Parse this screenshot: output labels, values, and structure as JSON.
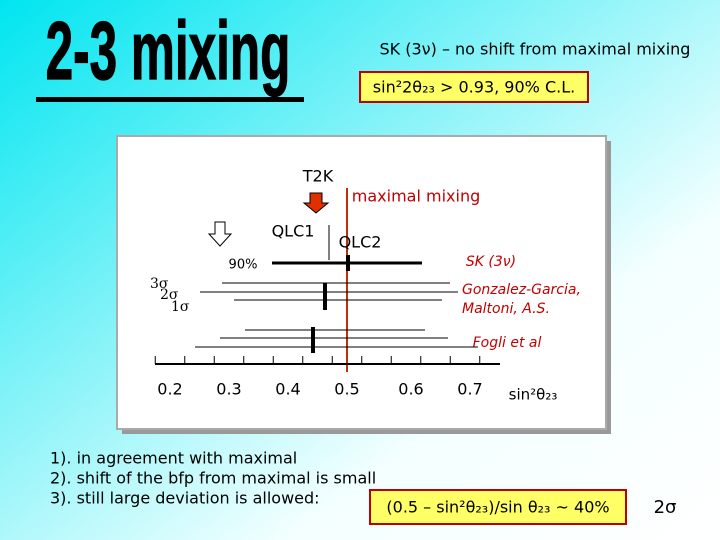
{
  "slide": {
    "title": "2-3 mixing",
    "box1": "SK (3ν) – no shift  from maximal mixing",
    "box2": "sin²2θ₂₃ > 0.93,  90% C.L.",
    "plot": {
      "t2k": "T2K",
      "maximal": "maximal mixing",
      "qlc1": "QLC1",
      "qlc2": "QLC2",
      "cl90": "90%",
      "sk": "SK (3ν)",
      "s3": "3σ",
      "s2": "2σ",
      "s1": "1σ",
      "gg": [
        "Gonzalez-Garcia,",
        "Maltoni,  A.S."
      ],
      "fogli": "Fogli et al",
      "ticks": [
        "0.2",
        "0.3",
        "0.4",
        "0.5",
        "0.6",
        "0.7"
      ],
      "axis_label": "sin²θ₂₃"
    },
    "notes": [
      "1). in agreement with maximal",
      "2). shift of the bfp  from maximal is small",
      "3). still large deviation is allowed:"
    ],
    "formula": "(0.5 – sin²θ₂₃)/sin θ₂₃ ~ 40%",
    "sigma": "2σ"
  }
}
